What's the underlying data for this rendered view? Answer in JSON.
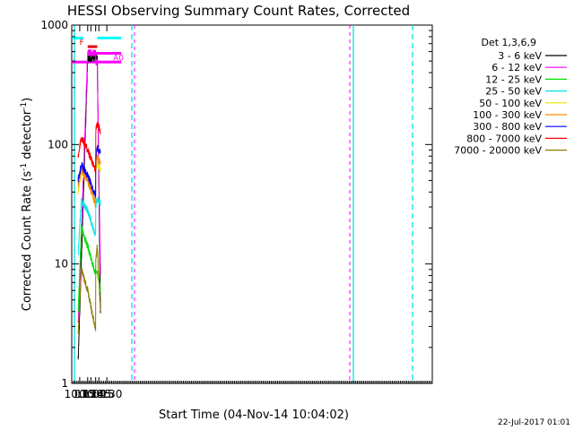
{
  "chart_data": {
    "type": "line",
    "title": "HESSI Observing Summary Count Rates, Corrected",
    "xlabel": "Start Time (04-Nov-14 10:04:02)",
    "ylabel_main": "Corrected Count Rate (s",
    "ylabel_sup1": "-1",
    "ylabel_mid": " detector",
    "ylabel_sup2": "-1",
    "ylabel_end": ")",
    "yscale": "log",
    "ylim": [
      1,
      1000
    ],
    "xlim_minutes": [
      10.0,
      28.5
    ],
    "x_tick_labels": [
      "10:15",
      "10:30",
      "10:45",
      "11:00",
      "11:15",
      "11:30"
    ],
    "x_tick_minutes": [
      10.25,
      10.5,
      10.75,
      11.0,
      11.25,
      11.5
    ],
    "y_tick_labels": [
      "1",
      "10",
      "100",
      "1000"
    ],
    "y_tick_values": [
      1,
      10,
      100,
      1000
    ],
    "legend_title": "Det 1,3,6,9",
    "legend_position": "right",
    "series": [
      {
        "name": "3 - 6 keV",
        "color": "#000000",
        "x": [
          10.2,
          10.5,
          10.75,
          11.0,
          11.2,
          11.3
        ],
        "values": [
          1.5,
          520,
          540,
          530,
          530,
          4
        ]
      },
      {
        "name": "6 - 12 keV",
        "color": "#ff00ff",
        "x": [
          10.2,
          10.5,
          10.75,
          11.0,
          11.2,
          11.3
        ],
        "values": [
          3,
          600,
          580,
          560,
          480,
          8
        ]
      },
      {
        "name": "12 - 25 keV",
        "color": "#00e000",
        "x": [
          10.2,
          10.3,
          10.5,
          10.75,
          11.0,
          11.2,
          11.3
        ],
        "values": [
          4,
          20,
          14,
          8,
          8,
          9,
          6
        ]
      },
      {
        "name": "25 - 50 keV",
        "color": "#00e5e5",
        "x": [
          10.2,
          10.3,
          10.5,
          10.75,
          11.0,
          11.2,
          11.3
        ],
        "values": [
          12,
          34,
          28,
          17,
          20,
          35,
          32
        ]
      },
      {
        "name": "50 - 100 keV",
        "color": "#e5e500",
        "x": [
          10.2,
          10.3,
          10.5,
          10.75,
          11.0,
          11.2,
          11.3
        ],
        "values": [
          40,
          60,
          50,
          32,
          45,
          70,
          60
        ]
      },
      {
        "name": "100 - 300 keV",
        "color": "#ff8c00",
        "x": [
          10.2,
          10.3,
          10.5,
          10.75,
          11.0,
          11.2,
          11.3
        ],
        "values": [
          45,
          62,
          50,
          31,
          45,
          80,
          70
        ]
      },
      {
        "name": "300 - 800 keV",
        "color": "#0000ff",
        "x": [
          10.2,
          10.3,
          10.5,
          10.75,
          11.0,
          11.2,
          11.3
        ],
        "values": [
          50,
          68,
          55,
          37,
          48,
          95,
          85
        ]
      },
      {
        "name": "800 - 7000 keV",
        "color": "#ff0000",
        "x": [
          10.2,
          10.3,
          10.5,
          10.75,
          11.0,
          11.2,
          11.3
        ],
        "values": [
          80,
          115,
          90,
          60,
          80,
          150,
          130
        ]
      },
      {
        "name": "7000 - 20000 keV",
        "color": "#8b7d00",
        "x": [
          10.2,
          10.3,
          10.5,
          10.75,
          11.0,
          11.2,
          11.3
        ],
        "values": [
          2.5,
          9,
          6,
          2.8,
          4,
          14,
          4
        ]
      }
    ],
    "attenuator_bars": [
      {
        "label": "F",
        "color": "#e00000",
        "x_start": 10.5,
        "x_end": 11.2,
        "value": 660
      },
      {
        "label": "A0",
        "color": "#ff00ff",
        "x_start": 10.0,
        "x_end": 11.95,
        "value": 490
      },
      {
        "label": "",
        "color": "#ff00ff",
        "x_start": 10.5,
        "x_end": 11.95,
        "value": 580
      },
      {
        "label": "",
        "color": "#00ffff",
        "x_start": 10.0,
        "x_end": 10.36,
        "value": 780
      },
      {
        "label": "",
        "color": "#00ffff",
        "x_start": 11.2,
        "x_end": 11.95,
        "value": 780
      }
    ],
    "timestamp": "22-Jul-2017 01:01"
  }
}
